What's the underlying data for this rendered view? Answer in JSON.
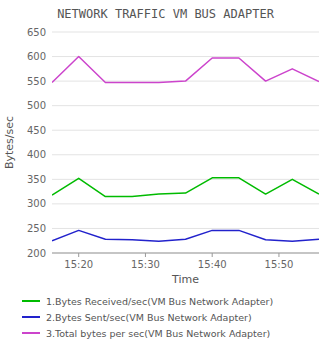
{
  "chart_data": {
    "type": "line",
    "title": "NETWORK TRAFFIC VM BUS ADAPTER",
    "x_label": "Time",
    "y_label": "Bytes/sec",
    "x": [
      0,
      1,
      2,
      3,
      4,
      5,
      6,
      7,
      8,
      9,
      10
    ],
    "xlim": [
      0,
      10
    ],
    "xticks": [
      {
        "value": 1,
        "label": "15:20"
      },
      {
        "value": 3.5,
        "label": "15:30"
      },
      {
        "value": 6,
        "label": "15:40"
      },
      {
        "value": 8.5,
        "label": "15:50"
      }
    ],
    "ylim": [
      200,
      650
    ],
    "yticks": [
      200,
      250,
      300,
      350,
      400,
      450,
      500,
      550,
      600,
      650
    ],
    "grid": true,
    "legend": "bottom",
    "series": [
      {
        "name": "1.Bytes Received/sec(VM Bus Network Adapter)",
        "color": "#00bb00",
        "values": [
          318,
          352,
          315,
          315,
          320,
          322,
          353,
          353,
          320,
          350,
          320
        ]
      },
      {
        "name": "2.Bytes Sent/sec(VM Bus Network Adapter)",
        "color": "#2222cc",
        "values": [
          225,
          246,
          228,
          227,
          224,
          228,
          246,
          246,
          227,
          224,
          228
        ]
      },
      {
        "name": "3.Total bytes per sec(VM Bus Network Adapter)",
        "color": "#cc44cc",
        "values": [
          547,
          600,
          547,
          547,
          547,
          550,
          597,
          597,
          550,
          575,
          549
        ]
      }
    ]
  }
}
